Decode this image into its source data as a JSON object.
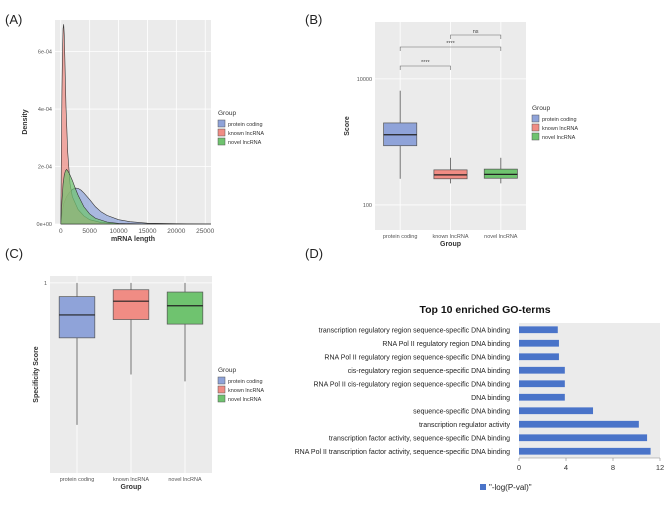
{
  "panel_labels": [
    "(A)",
    "(B)",
    "(C)",
    "(D)"
  ],
  "colors": {
    "protein_coding": "#8FA3D9",
    "known_lncrna": "#F08C84",
    "novel_lncrna": "#6FC36F",
    "go_bar": "#4A74C9",
    "panel_bg": "#EBEBEB",
    "grid": "#FFFFFF"
  },
  "chart_data": [
    {
      "id": "A",
      "type": "area",
      "title": "",
      "xlabel": "mRNA length",
      "ylabel": "Density",
      "xlim": [
        -1000,
        26000
      ],
      "ylim": [
        0,
        0.00071
      ],
      "x_ticks": [
        0,
        5000,
        10000,
        15000,
        20000,
        25000
      ],
      "x_tick_labels": [
        "0",
        "5000",
        "10000",
        "15000",
        "20000",
        "25000"
      ],
      "y_ticks": [
        0,
        0.0002,
        0.0004,
        0.0006
      ],
      "y_tick_labels": [
        "0e+00",
        "2e-04",
        "4e-04",
        "6e-04"
      ],
      "legend_title": "Group",
      "legend_position": "right",
      "series": [
        {
          "name": "protein coding",
          "color_key": "protein_coding",
          "x": [
            0,
            250,
            500,
            1000,
            1500,
            2000,
            2500,
            3000,
            3500,
            4000,
            5000,
            6000,
            7000,
            8000,
            10000,
            12000,
            15000,
            20000,
            26000
          ],
          "y": [
            0,
            4e-05,
            7e-05,
            9.5e-05,
            0.00011,
            0.00012,
            0.000125,
            0.000124,
            0.000118,
            0.000108,
            8.5e-05,
            6e-05,
            4.2e-05,
            3e-05,
            1.5e-05,
            8e-06,
            3e-06,
            1e-06,
            0
          ]
        },
        {
          "name": "known lncRNA",
          "color_key": "known_lncrna",
          "x": [
            0,
            100,
            200,
            300,
            400,
            500,
            600,
            700,
            900,
            1200,
            1600,
            2000,
            3000,
            4000,
            5000,
            7000,
            10000,
            15000,
            26000
          ],
          "y": [
            0,
            0.00025,
            0.00046,
            0.0006,
            0.00068,
            0.000695,
            0.00066,
            0.00058,
            0.00041,
            0.00025,
            0.00014,
            9.5e-05,
            5e-05,
            2.8e-05,
            1.5e-05,
            5e-06,
            1e-06,
            0,
            0
          ]
        },
        {
          "name": "novel lncRNA",
          "color_key": "novel_lncrna",
          "x": [
            0,
            200,
            400,
            600,
            800,
            1000,
            1200,
            1500,
            2000,
            2500,
            3000,
            4000,
            5000,
            6000,
            8000,
            10000,
            15000,
            26000
          ],
          "y": [
            0,
            8e-05,
            0.00014,
            0.00017,
            0.000185,
            0.00019,
            0.000185,
            0.000175,
            0.000152,
            0.000125,
            0.0001,
            6e-05,
            3.5e-05,
            2e-05,
            7e-06,
            2e-06,
            0,
            0
          ]
        }
      ]
    },
    {
      "id": "B",
      "type": "box",
      "title": "",
      "xlabel": "Group",
      "ylabel": "Score",
      "y_scale": "log10",
      "ylim": [
        40,
        80000
      ],
      "y_ticks": [
        100,
        10000
      ],
      "y_tick_labels": [
        "100",
        "10000"
      ],
      "categories": [
        "protein coding",
        "known lncRNA",
        "novel lncRNA"
      ],
      "color_keys": [
        "protein_coding",
        "known_lncrna",
        "novel_lncrna"
      ],
      "boxes": [
        {
          "whisker_low": 260,
          "q1": 870,
          "median": 1300,
          "q3": 2000,
          "whisker_high": 6500
        },
        {
          "whisker_low": 220,
          "q1": 260,
          "median": 300,
          "q3": 360,
          "whisker_high": 560
        },
        {
          "whisker_low": 220,
          "q1": 265,
          "median": 305,
          "q3": 370,
          "whisker_high": 560
        }
      ],
      "significance": [
        {
          "from": 0,
          "to": 1,
          "label": "****"
        },
        {
          "from": 0,
          "to": 2,
          "label": "****"
        },
        {
          "from": 1,
          "to": 2,
          "label": "ns"
        }
      ],
      "legend_title": "Group",
      "legend_position": "right"
    },
    {
      "id": "C",
      "type": "box",
      "title": "",
      "xlabel": "Group",
      "ylabel": "Specificity Score",
      "ylim": [
        0.17,
        1.03
      ],
      "y_ticks": [
        1
      ],
      "y_tick_labels": [
        "1"
      ],
      "categories": [
        "protein coding",
        "known lncRNA",
        "novel lncRNA"
      ],
      "color_keys": [
        "protein_coding",
        "known_lncrna",
        "novel_lncrna"
      ],
      "boxes": [
        {
          "whisker_low": 0.38,
          "q1": 0.76,
          "median": 0.86,
          "q3": 0.94,
          "whisker_high": 1.0
        },
        {
          "whisker_low": 0.6,
          "q1": 0.84,
          "median": 0.92,
          "q3": 0.97,
          "whisker_high": 1.0
        },
        {
          "whisker_low": 0.57,
          "q1": 0.82,
          "median": 0.9,
          "q3": 0.96,
          "whisker_high": 1.0
        }
      ],
      "legend_title": "Group",
      "legend_position": "right"
    },
    {
      "id": "D",
      "type": "bar",
      "orientation": "horizontal",
      "title": "Top 10 enriched GO-terms",
      "xlabel": "",
      "ylabel": "",
      "xlim": [
        0,
        12
      ],
      "x_ticks": [
        0,
        4,
        8,
        12
      ],
      "x_tick_labels": [
        "0",
        "4",
        "8",
        "12"
      ],
      "categories": [
        "transcription regulatory region sequence-specific DNA binding",
        "RNA Pol II regulatory region DNA binding",
        "RNA Pol II regulatory region sequence-specific DNA binding",
        "cis-regulatory region sequence-specific DNA binding",
        "RNA Pol II cis-regulatory region sequence-specific DNA binding",
        "DNA binding",
        "sequence-specific DNA binding",
        "transcription regulator activity",
        "transcription factor activity, sequence-specific DNA binding",
        "RNA Pol II transcription factor activity, sequence-specific DNA binding"
      ],
      "series": [
        {
          "name": "\"-log(P-val)\"",
          "color_key": "go_bar",
          "values": [
            3.3,
            3.4,
            3.4,
            3.9,
            3.9,
            3.9,
            6.3,
            10.2,
            10.9,
            11.2
          ]
        }
      ],
      "legend_position": "bottom-left"
    }
  ]
}
